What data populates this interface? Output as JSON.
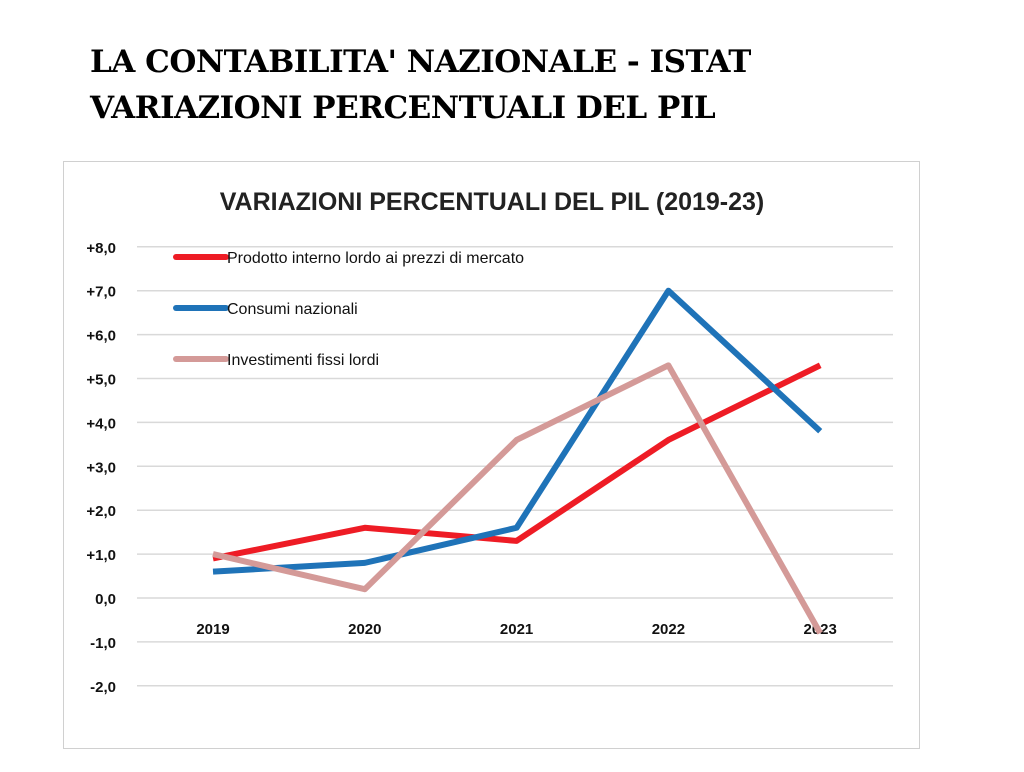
{
  "page": {
    "heading_line1": "LA CONTABILITA' NAZIONALE - ISTAT",
    "heading_line2": "VARIAZIONI PERCENTUALI DEL PIL"
  },
  "chart_data": {
    "type": "line",
    "title": "VARIAZIONI PERCENTUALI DEL PIL (2019-23)",
    "categories": [
      "2019",
      "2020",
      "2021",
      "2022",
      "2023"
    ],
    "ylim": [
      -2,
      8
    ],
    "yticks": [
      "+8,0",
      "+7,0",
      "+6,0",
      "+5,0",
      "+4,0",
      "+3,0",
      "+2,0",
      "+1,0",
      "0,0",
      "-1,0",
      "-2,0"
    ],
    "grid": true,
    "legend_placement": "top-left",
    "series": [
      {
        "name": "Prodotto interno lordo ai prezzi di mercato",
        "color": "#ee1c25",
        "values": [
          0.9,
          1.6,
          1.3,
          3.6,
          5.3
        ]
      },
      {
        "name": "Consumi nazionali",
        "color": "#1f73b8",
        "values": [
          0.6,
          0.8,
          1.6,
          7.0,
          3.8
        ]
      },
      {
        "name": "Investimenti fissi lordi",
        "color": "#d49a98",
        "values": [
          1.0,
          0.2,
          3.6,
          5.3,
          -0.8
        ]
      }
    ]
  }
}
